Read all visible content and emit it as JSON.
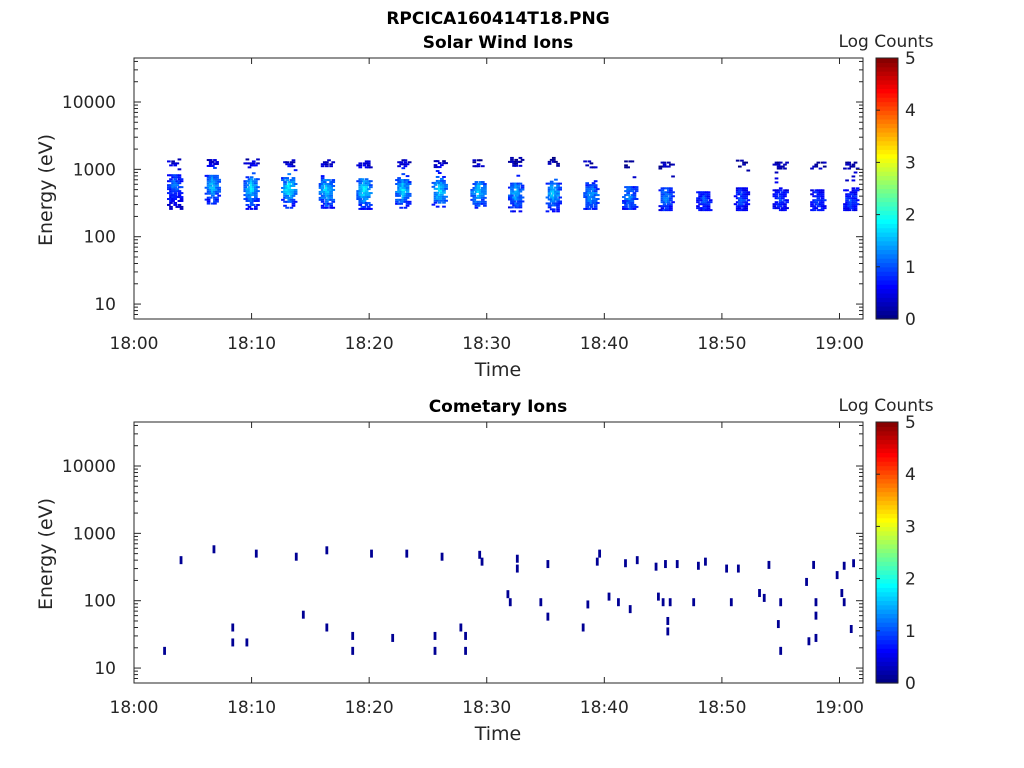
{
  "figure_title": "RPCICA160414T18.PNG",
  "chart_data": [
    {
      "type": "heatmap",
      "title": "Solar Wind Ions",
      "xlabel": "Time",
      "ylabel": "Energy (eV)",
      "x_ticks": [
        "18:00",
        "18:10",
        "18:20",
        "18:30",
        "18:40",
        "18:50",
        "19:00"
      ],
      "y_ticks": [
        "10",
        "100",
        "1000",
        "10000"
      ],
      "y_scale": "log",
      "x_range": [
        "18:00",
        "19:02"
      ],
      "y_range": [
        6,
        45000
      ],
      "colorbar": {
        "label": "Log Counts",
        "ticks": [
          "0",
          "1",
          "2",
          "3",
          "4",
          "5"
        ],
        "range": [
          0,
          5
        ],
        "colormap": "jet"
      },
      "description": "Periodic bursts roughly every 3 minutes, energies ~250-1400 eV, log counts mostly 0.5-1.8",
      "bursts": [
        {
          "time": "18:03.5",
          "e_low": 250,
          "e_high": 1400,
          "peak_e": 550,
          "max_log": 1.0
        },
        {
          "time": "18:06.7",
          "e_low": 300,
          "e_high": 1400,
          "peak_e": 550,
          "max_log": 1.5
        },
        {
          "time": "18:10.0",
          "e_low": 250,
          "e_high": 1400,
          "peak_e": 500,
          "max_log": 1.6
        },
        {
          "time": "18:13.2",
          "e_low": 260,
          "e_high": 1400,
          "peak_e": 500,
          "max_log": 1.7
        },
        {
          "time": "18:16.4",
          "e_low": 260,
          "e_high": 1400,
          "peak_e": 480,
          "max_log": 1.6
        },
        {
          "time": "18:19.6",
          "e_low": 250,
          "e_high": 1350,
          "peak_e": 480,
          "max_log": 1.7
        },
        {
          "time": "18:22.9",
          "e_low": 260,
          "e_high": 1350,
          "peak_e": 480,
          "max_log": 1.6
        },
        {
          "time": "18:26.0",
          "e_low": 270,
          "e_high": 1350,
          "peak_e": 460,
          "max_log": 1.6
        },
        {
          "time": "18:29.3",
          "e_low": 260,
          "e_high": 1350,
          "peak_e": 450,
          "max_log": 1.5
        },
        {
          "time": "18:32.5",
          "e_low": 230,
          "e_high": 1450,
          "peak_e": 430,
          "max_log": 1.4
        },
        {
          "time": "18:35.7",
          "e_low": 230,
          "e_high": 1500,
          "peak_e": 430,
          "max_log": 1.5
        },
        {
          "time": "18:38.9",
          "e_low": 250,
          "e_high": 1300,
          "peak_e": 400,
          "max_log": 1.3
        },
        {
          "time": "18:42.2",
          "e_low": 250,
          "e_high": 1300,
          "peak_e": 380,
          "max_log": 1.2
        },
        {
          "time": "18:45.3",
          "e_low": 240,
          "e_high": 1300,
          "peak_e": 370,
          "max_log": 1.1
        },
        {
          "time": "18:48.5",
          "e_low": 240,
          "e_high": 450,
          "peak_e": 350,
          "max_log": 0.8
        },
        {
          "time": "18:51.7",
          "e_low": 240,
          "e_high": 1350,
          "peak_e": 350,
          "max_log": 0.8
        },
        {
          "time": "18:55.0",
          "e_low": 240,
          "e_high": 1250,
          "peak_e": 340,
          "max_log": 0.8
        },
        {
          "time": "18:58.2",
          "e_low": 240,
          "e_high": 1300,
          "peak_e": 330,
          "max_log": 0.8
        },
        {
          "time": "19:01.0",
          "e_low": 240,
          "e_high": 1300,
          "peak_e": 330,
          "max_log": 0.8
        }
      ]
    },
    {
      "type": "heatmap",
      "title": "Cometary Ions",
      "xlabel": "Time",
      "ylabel": "Energy (eV)",
      "x_ticks": [
        "18:00",
        "18:10",
        "18:20",
        "18:30",
        "18:40",
        "18:50",
        "19:00"
      ],
      "y_ticks": [
        "10",
        "100",
        "1000",
        "10000"
      ],
      "y_scale": "log",
      "x_range": [
        "18:00",
        "19:02"
      ],
      "y_range": [
        6,
        45000
      ],
      "colorbar": {
        "label": "Log Counts",
        "ticks": [
          "0",
          "1",
          "2",
          "3",
          "4",
          "5"
        ],
        "range": [
          0,
          5
        ],
        "colormap": "jet"
      },
      "description": "Sparse low-count (log ~0) detections between ~15 and ~600 eV",
      "points": [
        [
          "18:02.6",
          18
        ],
        [
          "18:04.0",
          400
        ],
        [
          "18:06.8",
          580
        ],
        [
          "18:08.4",
          40
        ],
        [
          "18:08.4",
          24
        ],
        [
          "18:09.6",
          24
        ],
        [
          "18:10.4",
          500
        ],
        [
          "18:13.8",
          450
        ],
        [
          "18:14.4",
          62
        ],
        [
          "18:16.4",
          40
        ],
        [
          "18:16.4",
          560
        ],
        [
          "18:18.6",
          30
        ],
        [
          "18:18.6",
          18
        ],
        [
          "18:20.2",
          500
        ],
        [
          "18:22.0",
          28
        ],
        [
          "18:23.2",
          500
        ],
        [
          "18:25.6",
          30
        ],
        [
          "18:25.6",
          18
        ],
        [
          "18:26.2",
          450
        ],
        [
          "18:27.8",
          40
        ],
        [
          "18:28.2",
          30
        ],
        [
          "18:28.2",
          18
        ],
        [
          "18:29.4",
          480
        ],
        [
          "18:29.6",
          380
        ],
        [
          "18:31.8",
          125
        ],
        [
          "18:32.0",
          95
        ],
        [
          "18:32.6",
          420
        ],
        [
          "18:32.6",
          300
        ],
        [
          "18:34.6",
          95
        ],
        [
          "18:35.2",
          350
        ],
        [
          "18:35.2",
          58
        ],
        [
          "18:38.2",
          40
        ],
        [
          "18:38.6",
          88
        ],
        [
          "18:39.4",
          380
        ],
        [
          "18:39.6",
          500
        ],
        [
          "18:40.4",
          115
        ],
        [
          "18:41.2",
          95
        ],
        [
          "18:41.8",
          360
        ],
        [
          "18:42.2",
          75
        ],
        [
          "18:42.8",
          400
        ],
        [
          "18:44.4",
          320
        ],
        [
          "18:44.6",
          115
        ],
        [
          "18:45.0",
          95
        ],
        [
          "18:45.2",
          350
        ],
        [
          "18:45.4",
          50
        ],
        [
          "18:45.4",
          35
        ],
        [
          "18:45.6",
          95
        ],
        [
          "18:46.2",
          350
        ],
        [
          "18:47.6",
          95
        ],
        [
          "18:48.0",
          330
        ],
        [
          "18:48.6",
          380
        ],
        [
          "18:50.4",
          300
        ],
        [
          "18:50.8",
          95
        ],
        [
          "18:51.4",
          300
        ],
        [
          "18:53.2",
          130
        ],
        [
          "18:53.6",
          110
        ],
        [
          "18:54.0",
          340
        ],
        [
          "18:54.8",
          45
        ],
        [
          "18:55.0",
          95
        ],
        [
          "18:55.0",
          18
        ],
        [
          "18:57.2",
          190
        ],
        [
          "18:57.4",
          25
        ],
        [
          "18:57.8",
          340
        ],
        [
          "18:58.0",
          95
        ],
        [
          "18:58.0",
          28
        ],
        [
          "18:58.0",
          60
        ],
        [
          "18:59.8",
          240
        ],
        [
          "19:00.2",
          130
        ],
        [
          "19:00.4",
          330
        ],
        [
          "19:00.4",
          95
        ],
        [
          "19:01.0",
          38
        ],
        [
          "19:01.2",
          360
        ]
      ]
    }
  ]
}
